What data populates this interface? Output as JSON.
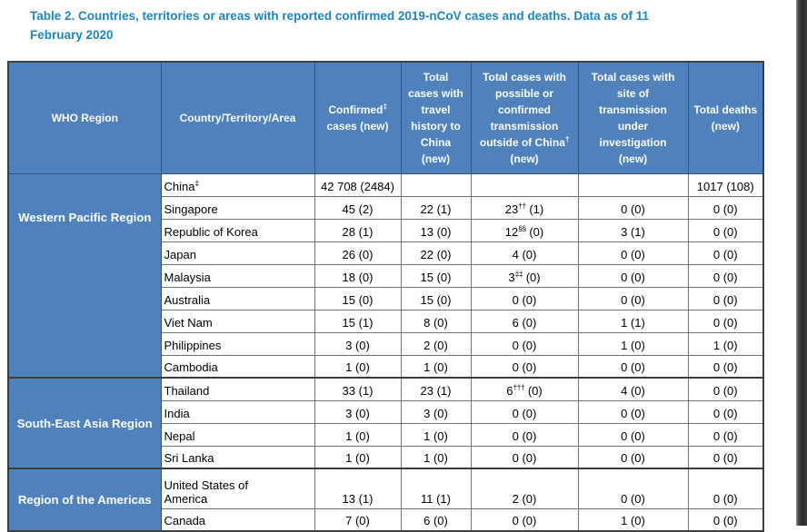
{
  "page": {
    "title_line1": "Table 2. Countries, territories or areas with reported confirmed 2019-nCoV cases and deaths. Data as of 11",
    "title_line2": "February 2020"
  },
  "colors": {
    "header_blue": "#4F81BD",
    "title_blue": "#1B86C4"
  },
  "table": {
    "headers": [
      {
        "text": "WHO Region"
      },
      {
        "text": "Country/Territory/Area"
      },
      {
        "pre": "Confirmed",
        "sup": "‡",
        "post": "\ncases (new)"
      },
      {
        "text": "Total\ncases with\ntravel\nhistory to\nChina\n(new)"
      },
      {
        "pre": "Total cases with\npossible or\nconfirmed\ntransmission\noutside of China",
        "sup": "†",
        "post": "\n(new)"
      },
      {
        "text": "Total cases with\nsite of\ntransmission\nunder\ninvestigation\n(new)"
      },
      {
        "text": "Total deaths\n(new)"
      }
    ],
    "column_keys": [
      "confirmed-cases",
      "travel-history-china",
      "transmission-outside-china",
      "under-investigation",
      "total-deaths"
    ],
    "regions": [
      {
        "label": "Western Pacific Region",
        "rows": [
          {
            "country": "China",
            "sup": "‡",
            "values": [
              "42 708 (2484)",
              "",
              "",
              "",
              "1017 (108)"
            ]
          },
          {
            "country": "Singapore",
            "values": [
              "45 (2)",
              "22 (1)",
              {
                "p": "23",
                "s": "††",
                "r": " (1)"
              },
              "0 (0)",
              "0 (0)"
            ]
          },
          {
            "country": "Republic of Korea",
            "values": [
              "28 (1)",
              "13 (0)",
              {
                "p": "12",
                "s": "§§",
                "r": " (0)"
              },
              "3 (1)",
              "0 (0)"
            ]
          },
          {
            "country": "Japan",
            "values": [
              "26 (0)",
              "22 (0)",
              "4 (0)",
              "0 (0)",
              "0 (0)"
            ]
          },
          {
            "country": "Malaysia",
            "values": [
              "18 (0)",
              "15 (0)",
              {
                "p": "3",
                "s": "‡‡",
                "r": " (0)"
              },
              "0 (0)",
              "0 (0)"
            ]
          },
          {
            "country": "Australia",
            "values": [
              "15 (0)",
              "15 (0)",
              "0 (0)",
              "0 (0)",
              "0 (0)"
            ]
          },
          {
            "country": "Viet Nam",
            "values": [
              "15 (1)",
              "8 (0)",
              "6 (0)",
              "1 (1)",
              "0 (0)"
            ]
          },
          {
            "country": "Philippines",
            "values": [
              "3 (0)",
              "2 (0)",
              "0 (0)",
              "1 (0)",
              "1 (0)"
            ]
          },
          {
            "country": "Cambodia",
            "values": [
              "1 (0)",
              "1 (0)",
              "0 (0)",
              "0 (0)",
              "0 (0)"
            ]
          }
        ]
      },
      {
        "label": "South-East Asia Region",
        "rows": [
          {
            "country": "Thailand",
            "values": [
              "33 (1)",
              "23 (1)",
              {
                "p": "6",
                "s": "†††",
                "r": " (0)"
              },
              "4 (0)",
              "0 (0)"
            ]
          },
          {
            "country": "India",
            "values": [
              "3 (0)",
              "3 (0)",
              "0 (0)",
              "0 (0)",
              "0 (0)"
            ]
          },
          {
            "country": "Nepal",
            "values": [
              "1 (0)",
              "1 (0)",
              "0 (0)",
              "0 (0)",
              "0 (0)"
            ]
          },
          {
            "country": "Sri Lanka",
            "values": [
              "1 (0)",
              "1 (0)",
              "0 (0)",
              "0 (0)",
              "0 (0)"
            ]
          }
        ]
      },
      {
        "label": "Region of the Americas",
        "rows": [
          {
            "country": "United States of\nAmerica",
            "values": [
              "13 (1)",
              "11 (1)",
              "2 (0)",
              "0 (0)",
              "0 (0)"
            ]
          },
          {
            "country": "Canada",
            "values": [
              "7 (0)",
              "6 (0)",
              "0 (0)",
              "1 (0)",
              "0 (0)"
            ]
          }
        ]
      }
    ]
  }
}
